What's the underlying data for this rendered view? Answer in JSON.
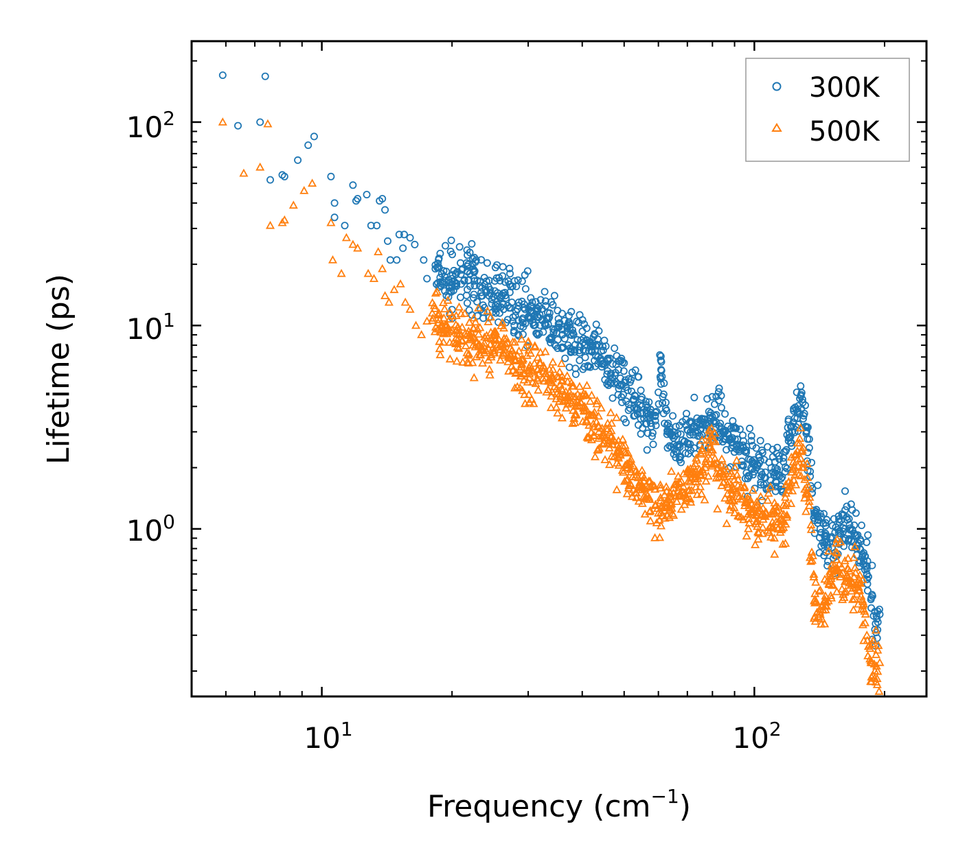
{
  "chart_data": {
    "type": "scatter",
    "title": "",
    "xlabel": "Frequency (cm",
    "xlabel_sup": "−1",
    "xlabel_end": ")",
    "ylabel": "Lifetime (ps)",
    "xscale": "log",
    "yscale": "log",
    "xlim": [
      5.0,
      250.0
    ],
    "ylim": [
      0.15,
      250.0
    ],
    "grid": false,
    "legend_position": "top-right",
    "x_ticks": [
      {
        "base": "10",
        "exp": "1",
        "value": 10
      },
      {
        "base": "10",
        "exp": "2",
        "value": 100
      }
    ],
    "y_ticks": [
      {
        "base": "10",
        "exp": "0",
        "value": 1
      },
      {
        "base": "10",
        "exp": "1",
        "value": 10
      },
      {
        "base": "10",
        "exp": "2",
        "value": 100
      }
    ],
    "series": [
      {
        "name": "300K",
        "marker": "circle",
        "color": "#1f77b4",
        "x": [
          5.9,
          6.4,
          7.2,
          7.4,
          7.6,
          8.1,
          8.2,
          8.8,
          9.3,
          9.6,
          10.5,
          10.7,
          10.7,
          11.3,
          11.8,
          12.0,
          12.1,
          12.7,
          13.0,
          13.4,
          13.6,
          13.8,
          14.0,
          14.2,
          14.4,
          14.9,
          15.1,
          15.4,
          15.5,
          16.0,
          16.4,
          17.2,
          17.5,
          18.3,
          19.0,
          20.0,
          21.0,
          22.0,
          22.5,
          23.5,
          24.5,
          25.5,
          26.5,
          27.5,
          28.5,
          29.5,
          30.5,
          31.5,
          33.0,
          34.5,
          36.0,
          37.5,
          39.0,
          40.5,
          42.0,
          43.5,
          45.0,
          47.0,
          49.0,
          51.0,
          53.0,
          55.0,
          57.0,
          59.0,
          61.0,
          62.0,
          63.0,
          65.0,
          67.0,
          69.0,
          71.0,
          73.0,
          75.0,
          77.0,
          79.0,
          81.0,
          83.0,
          85.0,
          87.0,
          89.0,
          91.0,
          93.0,
          95.0,
          97.0,
          99.0,
          101.0,
          106.0,
          116.0,
          118.0,
          120.0,
          122.0,
          124.0,
          126.0,
          128.0,
          130.0,
          132.0,
          134.0,
          136.0,
          138.0,
          142.0,
          146.0,
          150.0,
          154.0,
          158.0,
          162.0,
          166.0,
          170.0,
          174.0,
          178.0,
          182.0,
          186.0,
          190.0,
          195.0
        ],
        "y": [
          170.0,
          96.0,
          100.0,
          168.0,
          52.0,
          55.0,
          54.0,
          65.0,
          77.0,
          85.0,
          54.0,
          40.0,
          34.0,
          31.0,
          49.0,
          41.0,
          42.0,
          44.0,
          31.0,
          31.0,
          41.0,
          42.0,
          37.0,
          26.0,
          21.0,
          21.0,
          28.0,
          24.0,
          28.0,
          27.0,
          25.0,
          21.0,
          17.0,
          19.0,
          16.0,
          17.0,
          16.0,
          18.0,
          17.0,
          14.0,
          15.0,
          14.0,
          14.5,
          13.0,
          12.5,
          12.0,
          11.5,
          11.0,
          10.0,
          9.5,
          9.0,
          9.0,
          8.5,
          8.0,
          7.5,
          7.0,
          6.5,
          5.5,
          5.5,
          4.8,
          4.5,
          4.0,
          3.6,
          3.4,
          6.0,
          3.3,
          3.0,
          2.8,
          2.6,
          2.7,
          2.9,
          3.0,
          3.1,
          3.3,
          3.5,
          3.6,
          3.2,
          3.0,
          2.9,
          2.8,
          2.6,
          2.5,
          2.4,
          2.2,
          2.1,
          2.0,
          1.9,
          1.8,
          2.4,
          2.8,
          3.2,
          3.5,
          3.8,
          4.5,
          3.6,
          3.0,
          2.5,
          1.5,
          1.1,
          1.0,
          0.95,
          0.9,
          0.85,
          0.95,
          1.0,
          1.05,
          0.95,
          0.85,
          0.75,
          0.6,
          0.45,
          0.32,
          0.38
        ]
      },
      {
        "name": "500K",
        "marker": "triangle",
        "color": "#ff7f0e",
        "x": [
          5.9,
          6.6,
          7.2,
          7.5,
          7.6,
          8.1,
          8.2,
          8.6,
          9.1,
          9.5,
          10.5,
          10.6,
          11.1,
          11.4,
          11.8,
          12.1,
          12.8,
          13.2,
          13.5,
          13.8,
          14.0,
          14.3,
          14.7,
          15.2,
          15.6,
          16.0,
          16.5,
          17.0,
          17.5,
          18.0,
          19.0,
          20.0,
          21.0,
          22.0,
          23.0,
          24.0,
          25.0,
          26.0,
          27.0,
          28.0,
          29.0,
          30.0,
          31.5,
          33.0,
          34.5,
          36.0,
          37.5,
          39.0,
          40.5,
          42.0,
          43.5,
          45.0,
          47.0,
          49.0,
          51.0,
          53.0,
          55.0,
          57.0,
          59.0,
          61.0,
          63.0,
          65.0,
          67.0,
          69.0,
          71.0,
          73.0,
          75.0,
          77.0,
          79.0,
          81.0,
          83.0,
          85.0,
          87.0,
          89.0,
          91.0,
          93.0,
          95.0,
          97.0,
          99.0,
          101.0,
          106.0,
          116.0,
          118.0,
          120.0,
          122.0,
          124.0,
          126.0,
          128.0,
          130.0,
          132.0,
          134.0,
          136.0,
          138.0,
          142.0,
          146.0,
          150.0,
          154.0,
          158.0,
          162.0,
          166.0,
          170.0,
          174.0,
          178.0,
          182.0,
          186.0,
          190.0,
          195.0
        ],
        "y": [
          100.0,
          56.0,
          60.0,
          98.0,
          31.0,
          32.0,
          33.0,
          39.0,
          46.0,
          50.0,
          32.0,
          21.0,
          18.0,
          27.0,
          25.0,
          24.0,
          18.0,
          17.0,
          23.0,
          19.0,
          14.0,
          13.0,
          15.0,
          16.0,
          13.0,
          12.0,
          10.0,
          9.0,
          10.5,
          11.5,
          10.0,
          9.5,
          9.0,
          8.5,
          8.0,
          7.5,
          7.5,
          8.0,
          7.0,
          6.8,
          6.5,
          6.0,
          5.5,
          5.8,
          5.0,
          4.8,
          4.5,
          4.2,
          4.0,
          3.6,
          3.2,
          2.9,
          2.6,
          2.3,
          2.0,
          1.8,
          1.6,
          1.4,
          1.3,
          1.3,
          1.4,
          1.5,
          1.6,
          1.5,
          1.7,
          1.8,
          1.9,
          2.0,
          2.2,
          2.1,
          1.9,
          1.7,
          1.6,
          1.5,
          1.5,
          1.4,
          1.3,
          1.3,
          1.25,
          1.2,
          1.15,
          1.1,
          1.3,
          1.6,
          1.9,
          2.0,
          2.2,
          2.4,
          2.0,
          1.6,
          1.3,
          0.7,
          0.45,
          0.38,
          0.42,
          0.55,
          0.62,
          0.58,
          0.55,
          0.62,
          0.58,
          0.5,
          0.42,
          0.3,
          0.22,
          0.2,
          0.22
        ]
      }
    ]
  }
}
